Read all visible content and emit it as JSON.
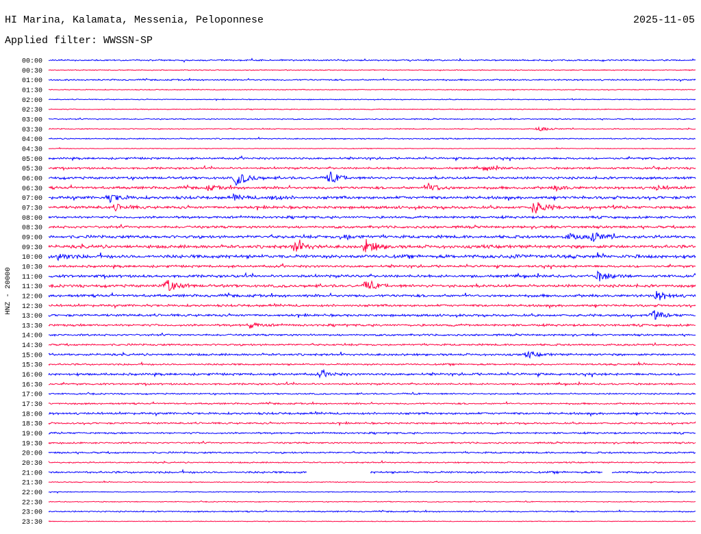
{
  "header": {
    "title": "HI Marina, Kalamata, Messenia, Peloponnese",
    "date": "2025-11-05",
    "filter": "Applied filter: WWSSN-SP"
  },
  "chart_data": {
    "type": "line",
    "title": "HI Marina, Kalamata, Messenia, Peloponnese",
    "ylabel": "HNZ - 20000",
    "xlabel": "",
    "minutes_per_row": 30,
    "row_labels": [
      "00:00",
      "00:30",
      "01:00",
      "01:30",
      "02:00",
      "02:30",
      "03:00",
      "03:30",
      "04:00",
      "04:30",
      "05:00",
      "05:30",
      "06:00",
      "06:30",
      "07:00",
      "07:30",
      "08:00",
      "08:30",
      "09:00",
      "09:30",
      "10:00",
      "10:30",
      "11:00",
      "11:30",
      "12:00",
      "12:30",
      "13:00",
      "13:30",
      "14:00",
      "14:30",
      "15:00",
      "15:30",
      "16:00",
      "16:30",
      "17:00",
      "17:30",
      "18:00",
      "18:30",
      "19:00",
      "19:30",
      "20:00",
      "20:30",
      "21:00",
      "21:30",
      "22:00",
      "22:30",
      "23:00",
      "23:30"
    ],
    "colors": [
      "#0000ff",
      "#ff0040"
    ],
    "noise_level": [
      1,
      0.6,
      1,
      0.6,
      0.6,
      0.6,
      0.8,
      0.7,
      0.8,
      0.5,
      1.4,
      1.4,
      1.7,
      1.8,
      2,
      1.9,
      1.6,
      1.7,
      2,
      2.2,
      2.3,
      1.6,
      1.8,
      1.9,
      1.8,
      1.6,
      1.6,
      1.5,
      1.3,
      1.3,
      1.5,
      1.2,
      1.6,
      1.2,
      1,
      1.1,
      1.5,
      1.2,
      1.2,
      1.1,
      1.2,
      0.9,
      1.4,
      0.6,
      0.6,
      0.6,
      0.9,
      0.5
    ],
    "events": [
      {
        "row": 7,
        "minute": 22.7,
        "amp": 3
      },
      {
        "row": 11,
        "minute": 20.3,
        "amp": 3
      },
      {
        "row": 12,
        "minute": 8.7,
        "amp": 11
      },
      {
        "row": 12,
        "minute": 13.0,
        "amp": 8
      },
      {
        "row": 13,
        "minute": 7.4,
        "amp": 3
      },
      {
        "row": 13,
        "minute": 17.6,
        "amp": 6
      },
      {
        "row": 13,
        "minute": 23.5,
        "amp": 3
      },
      {
        "row": 13,
        "minute": 28.2,
        "amp": 3
      },
      {
        "row": 14,
        "minute": 2.8,
        "amp": 6
      },
      {
        "row": 14,
        "minute": 8.6,
        "amp": 3
      },
      {
        "row": 14,
        "minute": 10.3,
        "amp": 3
      },
      {
        "row": 15,
        "minute": 3.1,
        "amp": 4
      },
      {
        "row": 15,
        "minute": 22.5,
        "amp": 10
      },
      {
        "row": 18,
        "minute": 13.6,
        "amp": 4
      },
      {
        "row": 18,
        "minute": 24.1,
        "amp": 4
      },
      {
        "row": 18,
        "minute": 25.2,
        "amp": 7
      },
      {
        "row": 19,
        "minute": 11.4,
        "amp": 8
      },
      {
        "row": 19,
        "minute": 14.7,
        "amp": 10
      },
      {
        "row": 20,
        "minute": 0.4,
        "amp": 5
      },
      {
        "row": 20,
        "minute": 21.5,
        "amp": 3
      },
      {
        "row": 22,
        "minute": 25.5,
        "amp": 7
      },
      {
        "row": 23,
        "minute": 5.4,
        "amp": 10
      },
      {
        "row": 23,
        "minute": 14.7,
        "amp": 6
      },
      {
        "row": 24,
        "minute": 28.2,
        "amp": 7
      },
      {
        "row": 26,
        "minute": 28.0,
        "amp": 6
      },
      {
        "row": 27,
        "minute": 9.3,
        "amp": 4
      },
      {
        "row": 30,
        "minute": 22.2,
        "amp": 4
      },
      {
        "row": 32,
        "minute": 12.6,
        "amp": 4
      }
    ],
    "gaps": [
      {
        "row": 42,
        "from_minute": 12.0,
        "to_minute": 14.9
      },
      {
        "row": 42,
        "from_minute": 25.7,
        "to_minute": 26.1
      }
    ]
  }
}
